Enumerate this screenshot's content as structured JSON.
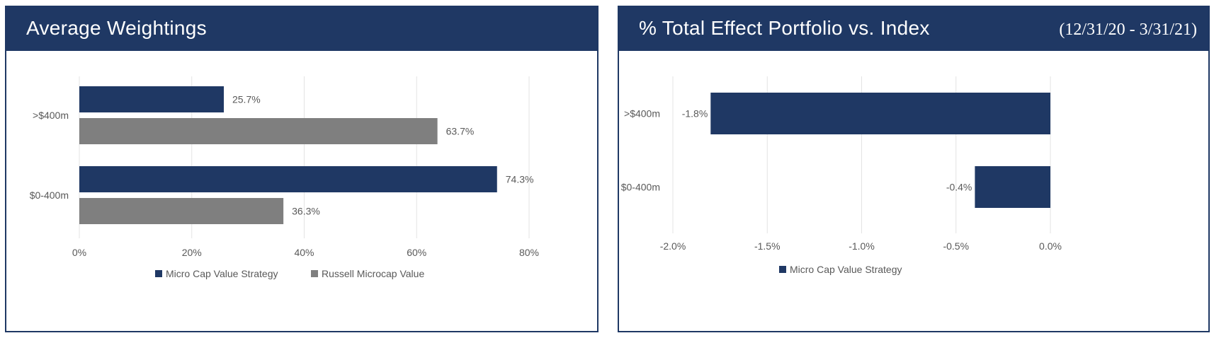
{
  "colors": {
    "navy": "#1f3864",
    "gray": "#7f7f7f",
    "grid": "#e3e3e3",
    "text": "#595959"
  },
  "chart_data": [
    {
      "type": "bar",
      "orientation": "horizontal",
      "title": "Average Weightings",
      "categories": [
        ">$400m",
        "$0-400m"
      ],
      "series": [
        {
          "name": "Micro Cap Value Strategy",
          "values": [
            25.7,
            74.3
          ],
          "labels": [
            "25.7%",
            "74.3%"
          ],
          "color": "#1f3864"
        },
        {
          "name": "Russell Microcap Value",
          "values": [
            63.7,
            36.3
          ],
          "labels": [
            "63.7%",
            "36.3%"
          ],
          "color": "#7f7f7f"
        }
      ],
      "xlim": [
        0,
        80
      ],
      "ticks": [
        0,
        20,
        40,
        60,
        80
      ],
      "tick_labels": [
        "0%",
        "20%",
        "40%",
        "60%",
        "80%"
      ],
      "legend": "bottom"
    },
    {
      "type": "bar",
      "orientation": "horizontal",
      "title": "% Total Effect Portfolio vs. Index",
      "subtitle": "(12/31/20 - 3/31/21)",
      "categories": [
        ">$400m",
        "$0-400m"
      ],
      "series": [
        {
          "name": "Micro Cap Value Strategy",
          "values": [
            -1.8,
            -0.4
          ],
          "labels": [
            "-1.8%",
            "-0.4%"
          ],
          "color": "#1f3864"
        }
      ],
      "xlim": [
        -2.0,
        0.0
      ],
      "ticks": [
        -2.0,
        -1.5,
        -1.0,
        -0.5,
        0.0
      ],
      "tick_labels": [
        "-2.0%",
        "-1.5%",
        "-1.0%",
        "-0.5%",
        "0.0%"
      ],
      "legend": "bottom"
    }
  ]
}
